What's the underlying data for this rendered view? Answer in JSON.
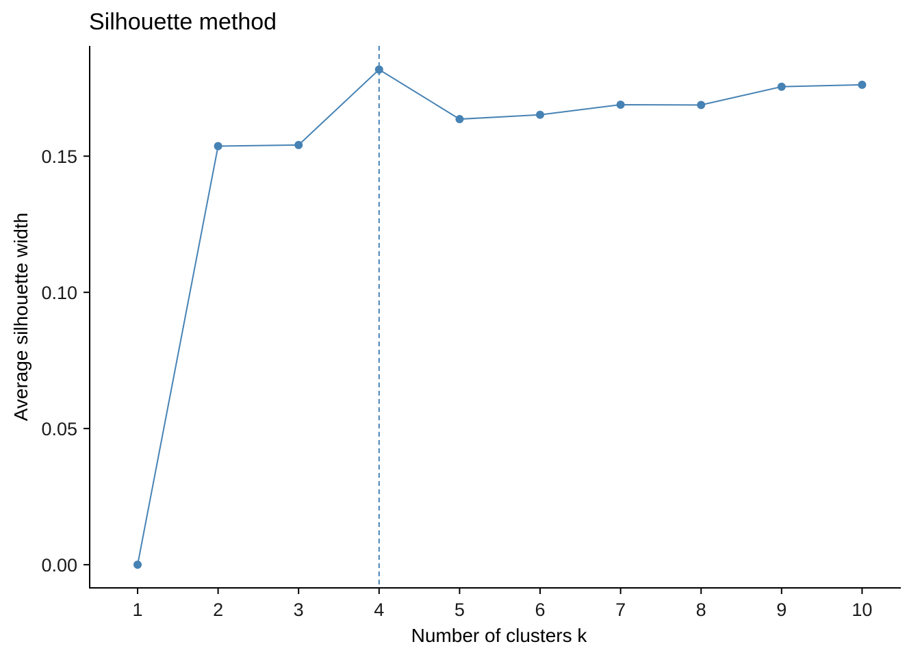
{
  "chart_data": {
    "type": "line",
    "title": "Silhouette method",
    "xlabel": "Number of clusters k",
    "ylabel": "Average silhouette width",
    "x": [
      "1",
      "2",
      "3",
      "4",
      "5",
      "6",
      "7",
      "8",
      "9",
      "10"
    ],
    "series": [
      {
        "values": [
          0.0,
          0.1537,
          0.1541,
          0.1818,
          0.1636,
          0.1652,
          0.1689,
          0.1688,
          0.1755,
          0.1762
        ]
      }
    ],
    "ylim": [
      -0.0085,
      0.1905
    ],
    "yticks": [
      "0.00",
      "0.05",
      "0.10",
      "0.15"
    ],
    "ytick_values": [
      0.0,
      0.05,
      0.1,
      0.15
    ],
    "optimal_k_line": 4,
    "grid": false,
    "legend": "none",
    "colors": {
      "series": "#4682B4",
      "optimal_line": "#4682B4",
      "axis": "#000000"
    }
  }
}
